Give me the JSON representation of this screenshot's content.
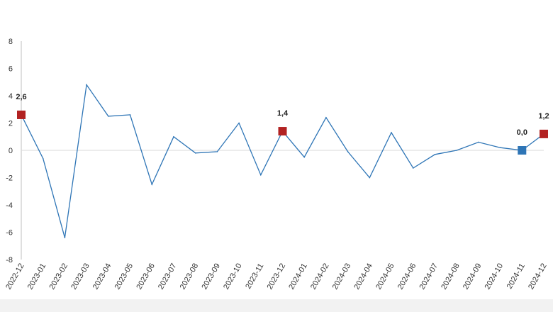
{
  "chart_data": {
    "type": "line",
    "title": "",
    "xlabel": "",
    "ylabel": "",
    "ylim": [
      -8,
      8
    ],
    "yticks": [
      8,
      6,
      4,
      2,
      0,
      -2,
      -4,
      -6,
      -8
    ],
    "grid": false,
    "categories": [
      "2022-12",
      "2023-01",
      "2023-02",
      "2023-03",
      "2023-04",
      "2023-05",
      "2023-06",
      "2023-07",
      "2023-08",
      "2023-09",
      "2023-10",
      "2023-11",
      "2023-12",
      "2024-01",
      "2024-02",
      "2024-03",
      "2024-04",
      "2024-05",
      "2024-06",
      "2024-07",
      "2024-08",
      "2024-09",
      "2024-10",
      "2024-11",
      "2024-12"
    ],
    "series": [
      {
        "values": [
          2.6,
          -0.6,
          -6.4,
          4.8,
          2.5,
          2.6,
          -2.5,
          1.0,
          -0.2,
          -0.1,
          2.0,
          -1.8,
          1.4,
          -0.5,
          2.4,
          -0.1,
          -2.0,
          1.3,
          -1.3,
          -0.3,
          0.0,
          0.6,
          0.2,
          0.0,
          1.2
        ],
        "color": "#2e75b6"
      }
    ],
    "markers": [
      {
        "category": "2022-12",
        "value": 2.6,
        "label": "2,6",
        "color": "#b22222"
      },
      {
        "category": "2023-12",
        "value": 1.4,
        "label": "1,4",
        "color": "#b22222"
      },
      {
        "category": "2024-11",
        "value": 0.0,
        "label": "0,0",
        "color": "#2e75b6"
      },
      {
        "category": "2024-12",
        "value": 1.2,
        "label": "1,2",
        "color": "#b22222"
      }
    ],
    "colors": {
      "axis": "#bfbfbf",
      "zero_line": "#d9d9d9",
      "line": "#2e75b6",
      "highlight_red": "#b22222",
      "highlight_blue": "#2e75b6",
      "background_band": "#f2f2f2"
    }
  }
}
